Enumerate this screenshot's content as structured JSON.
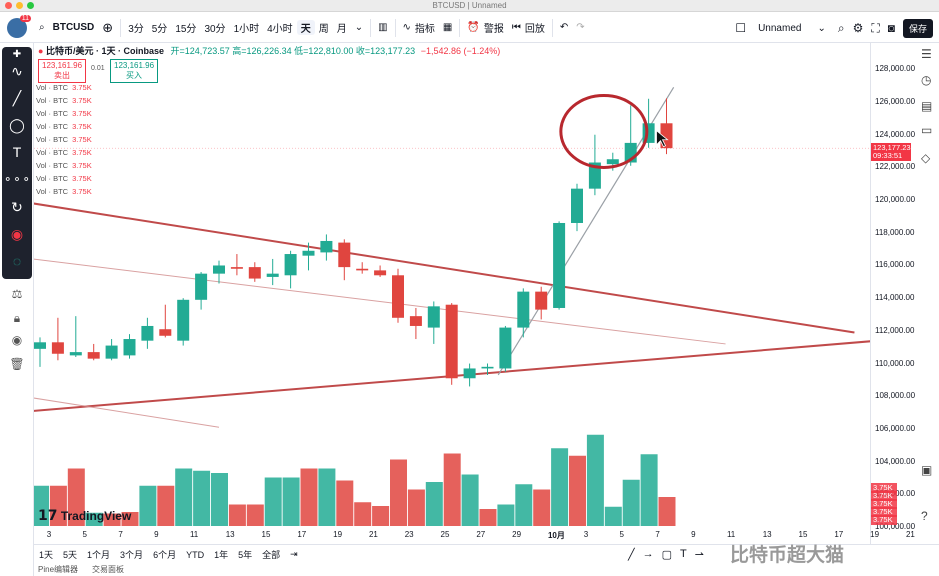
{
  "window": {
    "title": "BTCUSD | Unnamed"
  },
  "toolbar": {
    "symbol": "BTCUSD",
    "intervals": [
      "3分",
      "5分",
      "15分",
      "30分",
      "1小时",
      "4小时",
      "天",
      "周",
      "月"
    ],
    "active_interval": "天",
    "indicators_label": "指标",
    "alert_label": "警报",
    "replay_label": "回放",
    "layout_name": "Unnamed",
    "save_label": "保存"
  },
  "legend": {
    "title": "比特币/美元 · 1天 · Coinbase",
    "ohlc": "开=124,723.57 高=126,226.34 低=122,810.00 收=123,177.23",
    "change": "−1,542.86 (−1.24%)",
    "sell_price": "123,161.96",
    "sell_label": "卖出",
    "buy_price": "123,161.96",
    "buy_label": "买入",
    "spread": "0.01"
  },
  "volume_rows": [
    {
      "label": "Vol · BTC",
      "value": "3.75K"
    },
    {
      "label": "Vol · BTC",
      "value": "3.75K"
    },
    {
      "label": "Vol · BTC",
      "value": "3.75K"
    },
    {
      "label": "Vol · BTC",
      "value": "3.75K"
    },
    {
      "label": "Vol · BTC",
      "value": "3.75K"
    },
    {
      "label": "Vol · BTC",
      "value": "3.75K"
    },
    {
      "label": "Vol · BTC",
      "value": "3.75K"
    },
    {
      "label": "Vol · BTC",
      "value": "3.75K"
    },
    {
      "label": "Vol · BTC",
      "value": "3.75K"
    }
  ],
  "watermark": "TradingView",
  "price_axis": {
    "ticks": [
      "128,000.00",
      "126,000.00",
      "124,000.00",
      "122,000.00",
      "120,000.00",
      "118,000.00",
      "116,000.00",
      "114,000.00",
      "112,000.00",
      "110,000.00",
      "108,000.00",
      "106,000.00",
      "104,000.00",
      "102,000.00",
      "100,000.00"
    ],
    "current_price": "123,177.23",
    "countdown": "09:33:51",
    "vol_badges": [
      "3.75K",
      "3.75K",
      "3.75K",
      "3.75K",
      "3.75K"
    ]
  },
  "time_axis": {
    "ticks": [
      "3",
      "5",
      "7",
      "9",
      "11",
      "13",
      "15",
      "17",
      "19",
      "21",
      "23",
      "25",
      "27",
      "29",
      "10月",
      "3",
      "5",
      "7",
      "9",
      "11",
      "13",
      "15",
      "17",
      "19",
      "21"
    ]
  },
  "bottom_bar": {
    "ranges": [
      "1天",
      "5天",
      "1个月",
      "3个月",
      "6个月",
      "YTD",
      "1年",
      "5年",
      "全部"
    ]
  },
  "panels": [
    "Pine编辑器",
    "交易面板"
  ],
  "corner_watermark": "比特币超大猫",
  "chart_data": {
    "type": "candlestick",
    "dates": [
      "9/2",
      "9/3",
      "9/4",
      "9/5",
      "9/6",
      "9/7",
      "9/8",
      "9/9",
      "9/10",
      "9/11",
      "9/12",
      "9/13",
      "9/14",
      "9/15",
      "9/16",
      "9/17",
      "9/18",
      "9/19",
      "9/20",
      "9/21",
      "9/22",
      "9/23",
      "9/24",
      "9/25",
      "9/26",
      "9/27",
      "9/28",
      "9/29",
      "9/30",
      "10/1",
      "10/2",
      "10/3",
      "10/4",
      "10/5",
      "10/6",
      "10/7"
    ],
    "candles": [
      {
        "o": 110900,
        "h": 111600,
        "l": 109800,
        "c": 111300
      },
      {
        "o": 111300,
        "h": 112800,
        "l": 110200,
        "c": 110600
      },
      {
        "o": 110500,
        "h": 112900,
        "l": 110400,
        "c": 110700
      },
      {
        "o": 110700,
        "h": 111200,
        "l": 110200,
        "c": 110300
      },
      {
        "o": 110300,
        "h": 111500,
        "l": 110200,
        "c": 111100
      },
      {
        "o": 110500,
        "h": 111800,
        "l": 110300,
        "c": 111500
      },
      {
        "o": 111400,
        "h": 112800,
        "l": 110900,
        "c": 112300
      },
      {
        "o": 112100,
        "h": 113600,
        "l": 111600,
        "c": 111700
      },
      {
        "o": 111400,
        "h": 114000,
        "l": 111100,
        "c": 113900
      },
      {
        "o": 113900,
        "h": 115600,
        "l": 113300,
        "c": 115500
      },
      {
        "o": 115500,
        "h": 116300,
        "l": 114900,
        "c": 116000
      },
      {
        "o": 115900,
        "h": 116700,
        "l": 115400,
        "c": 115800
      },
      {
        "o": 115900,
        "h": 116200,
        "l": 115000,
        "c": 115200
      },
      {
        "o": 115300,
        "h": 116400,
        "l": 114800,
        "c": 115500
      },
      {
        "o": 115400,
        "h": 116900,
        "l": 114600,
        "c": 116700
      },
      {
        "o": 116600,
        "h": 117400,
        "l": 115700,
        "c": 116900
      },
      {
        "o": 116800,
        "h": 117900,
        "l": 116300,
        "c": 117500
      },
      {
        "o": 117400,
        "h": 117600,
        "l": 115100,
        "c": 115900
      },
      {
        "o": 115800,
        "h": 116200,
        "l": 115500,
        "c": 115700
      },
      {
        "o": 115700,
        "h": 116000,
        "l": 115300,
        "c": 115400
      },
      {
        "o": 115400,
        "h": 115800,
        "l": 112500,
        "c": 112800
      },
      {
        "o": 112900,
        "h": 113400,
        "l": 111500,
        "c": 112300
      },
      {
        "o": 112200,
        "h": 113800,
        "l": 111200,
        "c": 113500
      },
      {
        "o": 113600,
        "h": 113700,
        "l": 108700,
        "c": 109100
      },
      {
        "o": 109100,
        "h": 110000,
        "l": 108600,
        "c": 109700
      },
      {
        "o": 109700,
        "h": 110000,
        "l": 109300,
        "c": 109800
      },
      {
        "o": 109700,
        "h": 112300,
        "l": 109500,
        "c": 112200
      },
      {
        "o": 112200,
        "h": 114600,
        "l": 111600,
        "c": 114400
      },
      {
        "o": 114400,
        "h": 114700,
        "l": 112700,
        "c": 113300
      },
      {
        "o": 113400,
        "h": 118700,
        "l": 113300,
        "c": 118600
      },
      {
        "o": 118600,
        "h": 121000,
        "l": 118100,
        "c": 120700
      },
      {
        "o": 120700,
        "h": 124000,
        "l": 120300,
        "c": 122300
      },
      {
        "o": 122200,
        "h": 122900,
        "l": 121800,
        "c": 122500
      },
      {
        "o": 122300,
        "h": 125800,
        "l": 122100,
        "c": 123500
      },
      {
        "o": 123500,
        "h": 126200,
        "l": 123200,
        "c": 124700
      },
      {
        "o": 124700,
        "h": 126226,
        "l": 122810,
        "c": 123177
      }
    ],
    "volume_bars": [
      {
        "v": 0.55,
        "up": true
      },
      {
        "v": 0.55,
        "up": false
      },
      {
        "v": 0.78,
        "up": false
      },
      {
        "v": 0.19,
        "up": true
      },
      {
        "v": 0.18,
        "up": false
      },
      {
        "v": 0.2,
        "up": false
      },
      {
        "v": 0.55,
        "up": true
      },
      {
        "v": 0.55,
        "up": false
      },
      {
        "v": 0.78,
        "up": true
      },
      {
        "v": 0.75,
        "up": true
      },
      {
        "v": 0.72,
        "up": true
      },
      {
        "v": 0.3,
        "up": false
      },
      {
        "v": 0.3,
        "up": false
      },
      {
        "v": 0.66,
        "up": true
      },
      {
        "v": 0.66,
        "up": true
      },
      {
        "v": 0.78,
        "up": false
      },
      {
        "v": 0.78,
        "up": true
      },
      {
        "v": 0.62,
        "up": false
      },
      {
        "v": 0.33,
        "up": false
      },
      {
        "v": 0.28,
        "up": false
      },
      {
        "v": 0.9,
        "up": false
      },
      {
        "v": 0.5,
        "up": false
      },
      {
        "v": 0.6,
        "up": true
      },
      {
        "v": 0.98,
        "up": false
      },
      {
        "v": 0.7,
        "up": true
      },
      {
        "v": 0.24,
        "up": false
      },
      {
        "v": 0.3,
        "up": true
      },
      {
        "v": 0.57,
        "up": true
      },
      {
        "v": 0.5,
        "up": false
      },
      {
        "v": 1.05,
        "up": true
      },
      {
        "v": 0.95,
        "up": false
      },
      {
        "v": 1.23,
        "up": true
      },
      {
        "v": 0.27,
        "up": true
      },
      {
        "v": 0.63,
        "up": true
      },
      {
        "v": 0.97,
        "up": true
      },
      {
        "v": 0.4,
        "up": false
      }
    ],
    "ylim": [
      100000,
      129000
    ],
    "colors": {
      "up": "#22ab94",
      "down": "#e0453f"
    }
  }
}
